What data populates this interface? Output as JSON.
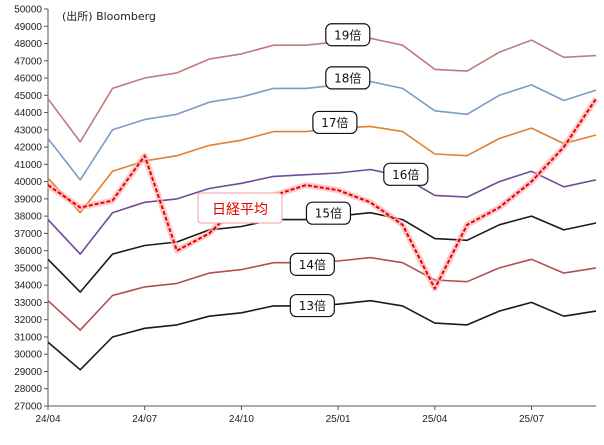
{
  "source_label": "(出所) Bloomberg",
  "chart_data": {
    "type": "line",
    "title": "",
    "xlabel": "",
    "ylabel": "",
    "ylim": [
      27000,
      50000
    ],
    "yticks": [
      27000,
      28000,
      29000,
      30000,
      31000,
      32000,
      33000,
      34000,
      35000,
      36000,
      37000,
      38000,
      39000,
      40000,
      41000,
      42000,
      43000,
      44000,
      45000,
      46000,
      47000,
      48000,
      49000,
      50000
    ],
    "x_tick_labels": [
      "24/04",
      "24/07",
      "24/10",
      "25/01",
      "25/04",
      "25/07"
    ],
    "grid": false,
    "x": [
      "2024-04",
      "2024-05",
      "2024-06",
      "2024-07",
      "2024-08",
      "2024-09",
      "2024-10",
      "2024-11",
      "2024-12",
      "2025-01",
      "2025-02",
      "2025-03",
      "2025-04",
      "2025-05",
      "2025-06",
      "2025-07",
      "2025-08",
      "2025-09"
    ],
    "series": [
      {
        "name": "19倍",
        "color": "#c07b7b",
        "values": [
          44800,
          42300,
          45400,
          46000,
          46300,
          47100,
          47400,
          47900,
          47900,
          48100,
          48300,
          47900,
          46500,
          46400,
          47500,
          48200,
          47200,
          47300
        ]
      },
      {
        "name": "18倍",
        "color": "#7b9bc8",
        "values": [
          42500,
          40100,
          43000,
          43600,
          43900,
          44600,
          44900,
          45400,
          45400,
          45600,
          45800,
          45400,
          44100,
          43900,
          45000,
          45600,
          44700,
          45300
        ]
      },
      {
        "name": "17倍",
        "color": "#e08030",
        "values": [
          40200,
          38200,
          40600,
          41200,
          41500,
          42100,
          42400,
          42900,
          42900,
          43100,
          43200,
          42900,
          41600,
          41500,
          42500,
          43100,
          42200,
          42700
        ]
      },
      {
        "name": "16倍",
        "color": "#704a99",
        "values": [
          37800,
          35800,
          38200,
          38800,
          39000,
          39600,
          39900,
          40300,
          40400,
          40500,
          40700,
          40300,
          39200,
          39100,
          40000,
          40600,
          39700,
          40100
        ]
      },
      {
        "name": "15倍",
        "color": "#1a1a1a",
        "values": [
          35500,
          33600,
          35800,
          36300,
          36500,
          37200,
          37400,
          37800,
          37800,
          38000,
          38200,
          37800,
          36700,
          36600,
          37500,
          38000,
          37200,
          37600
        ]
      },
      {
        "name": "14倍",
        "color": "#b05050",
        "values": [
          33100,
          31400,
          33400,
          33900,
          34100,
          34700,
          34900,
          35300,
          35300,
          35400,
          35600,
          35300,
          34300,
          34200,
          35000,
          35500,
          34700,
          35000
        ]
      },
      {
        "name": "13倍",
        "color": "#1a1a1a",
        "values": [
          30700,
          29100,
          31000,
          31500,
          31700,
          32200,
          32400,
          32800,
          32800,
          32900,
          33100,
          32800,
          31800,
          31700,
          32500,
          33000,
          32200,
          32500
        ]
      },
      {
        "name": "日経平均",
        "color": "#e60000",
        "values": [
          39800,
          38500,
          38900,
          41500,
          36000,
          37000,
          38800,
          39200,
          39800,
          39500,
          38800,
          37500,
          33800,
          37500,
          38500,
          40000,
          42000,
          44800
        ]
      }
    ]
  }
}
